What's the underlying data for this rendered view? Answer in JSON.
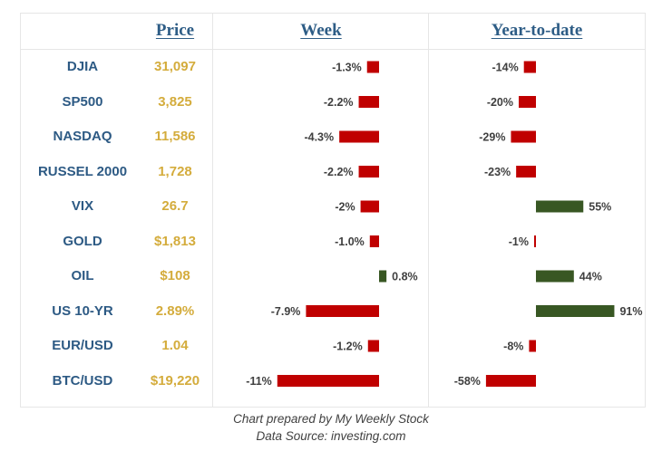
{
  "chart_data": {
    "type": "bar",
    "headers": {
      "price": "Price",
      "week": "Week",
      "ytd": "Year-to-date"
    },
    "rows": [
      {
        "name": "DJIA",
        "price": "31,097",
        "week": -1.3,
        "week_label": "-1.3%",
        "ytd": -14,
        "ytd_label": "-14%"
      },
      {
        "name": "SP500",
        "price": "3,825",
        "week": -2.2,
        "week_label": "-2.2%",
        "ytd": -20,
        "ytd_label": "-20%"
      },
      {
        "name": "NASDAQ",
        "price": "11,586",
        "week": -4.3,
        "week_label": "-4.3%",
        "ytd": -29,
        "ytd_label": "-29%"
      },
      {
        "name": "RUSSEL 2000",
        "price": "1,728",
        "week": -2.2,
        "week_label": "-2.2%",
        "ytd": -23,
        "ytd_label": "-23%"
      },
      {
        "name": "VIX",
        "price": "26.7",
        "week": -2.0,
        "week_label": "-2%",
        "ytd": 55,
        "ytd_label": "55%"
      },
      {
        "name": "GOLD",
        "price": "$1,813",
        "week": -1.0,
        "week_label": "-1.0%",
        "ytd": -1,
        "ytd_label": "-1%"
      },
      {
        "name": "OIL",
        "price": "$108",
        "week": 0.8,
        "week_label": "0.8%",
        "ytd": 44,
        "ytd_label": "44%"
      },
      {
        "name": "US 10-YR",
        "price": "2.89%",
        "week": -7.9,
        "week_label": "-7.9%",
        "ytd": 91,
        "ytd_label": "91%"
      },
      {
        "name": "EUR/USD",
        "price": "1.04",
        "week": -1.2,
        "week_label": "-1.2%",
        "ytd": -8,
        "ytd_label": "-8%"
      },
      {
        "name": "BTC/USD",
        "price": "$19,220",
        "week": -11,
        "week_label": "-11%",
        "ytd": -58,
        "ytd_label": "-58%"
      }
    ],
    "colors": {
      "negative": "#c00000",
      "positive": "#385723",
      "name": "#2d5a84",
      "price": "#d4ac3c",
      "header": "#2e5d86"
    }
  },
  "footer": {
    "line1": "Chart prepared by My Weekly Stock",
    "line2": "Data Source: investing.com"
  }
}
